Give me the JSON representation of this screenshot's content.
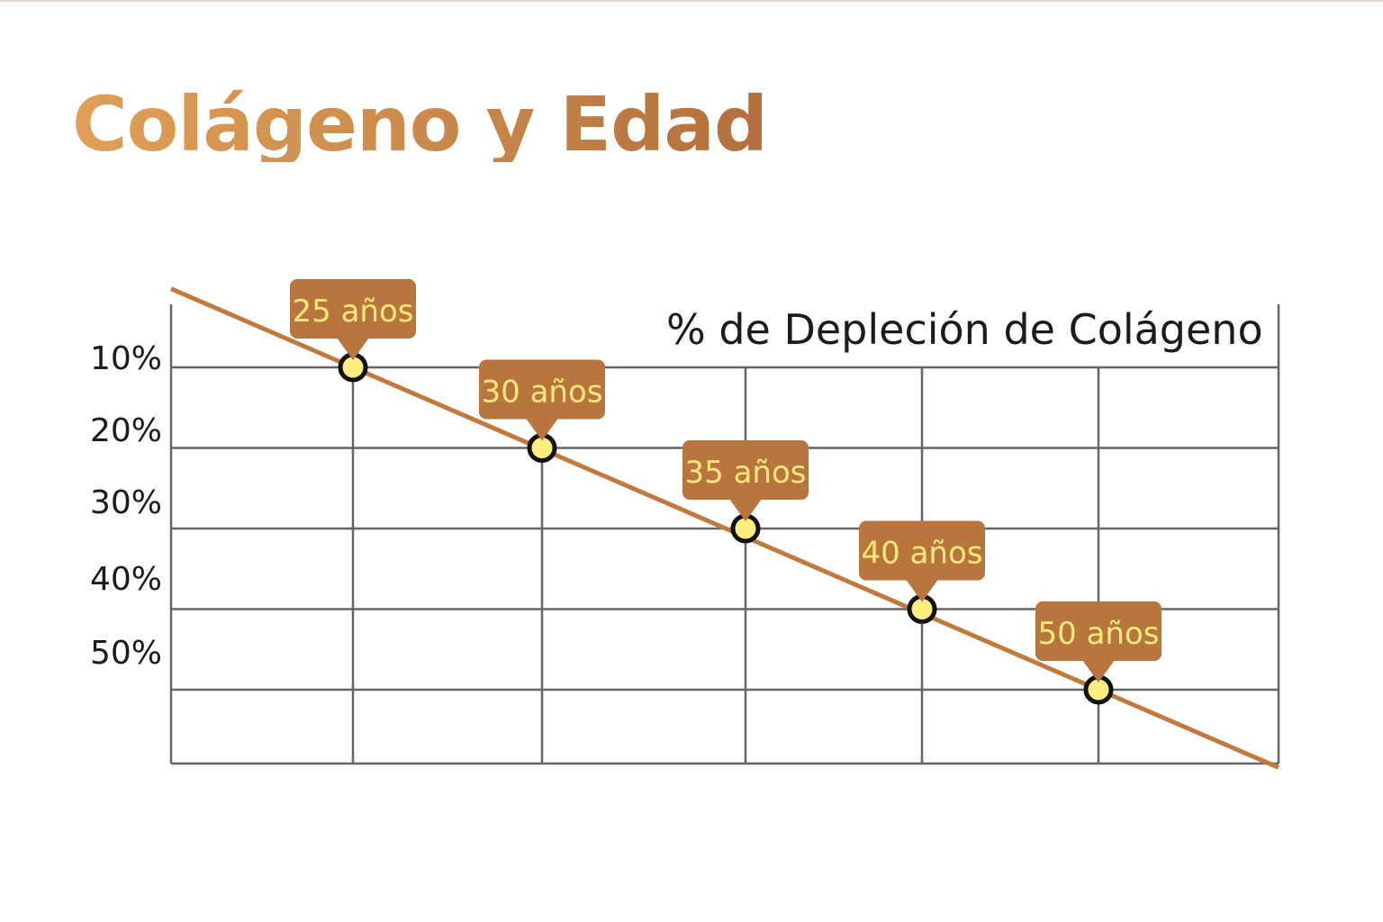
{
  "colors": {
    "title": "#c8884a",
    "line": "#c07a3c",
    "grid": "#666666",
    "callout_bg": "#b8763e",
    "callout_text": "#ffe97a",
    "marker_fill": "#ffef80",
    "marker_stroke": "#111111"
  },
  "chart_data": {
    "type": "line",
    "title": "Colágeno y Edad",
    "ylabel": "% de Depleción de Colágeno",
    "xlabel": "",
    "y_ticks": [
      "10%",
      "20%",
      "30%",
      "40%",
      "50%"
    ],
    "y_axis_direction": "down",
    "grid": true,
    "series": [
      {
        "points": [
          {
            "label": "25 años",
            "age": 25,
            "value": 10
          },
          {
            "label": "30 años",
            "age": 30,
            "value": 20
          },
          {
            "label": "35 años",
            "age": 35,
            "value": 30
          },
          {
            "label": "40 años",
            "age": 40,
            "value": 40
          },
          {
            "label": "50 años",
            "age": 50,
            "value": 50
          }
        ]
      }
    ]
  }
}
